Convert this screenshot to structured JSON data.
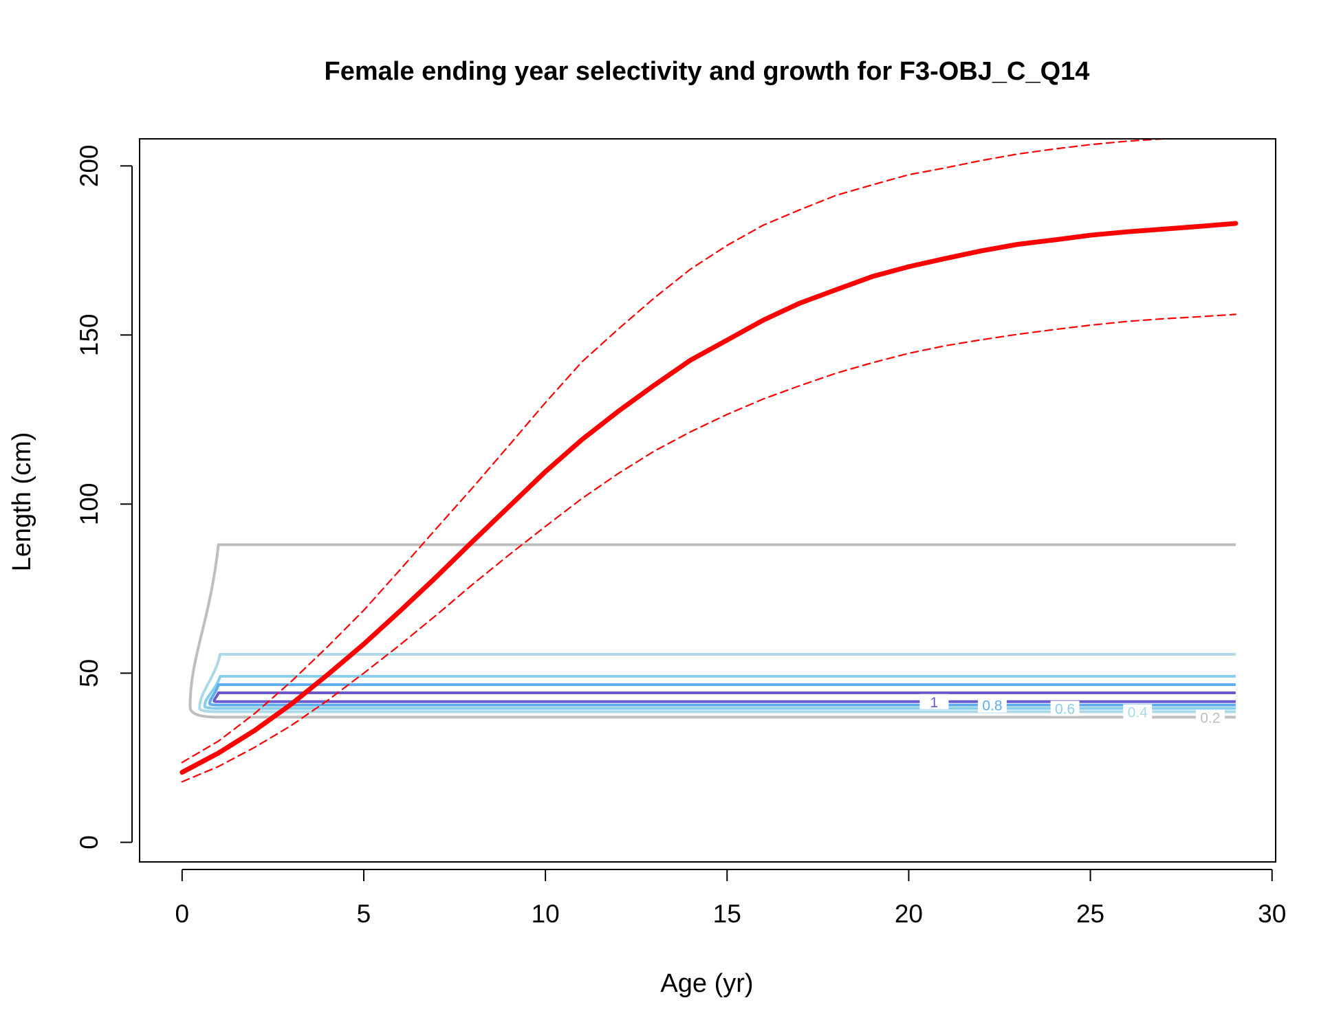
{
  "chart_data": {
    "type": "line",
    "title": "Female ending year selectivity and growth for F3-OBJ_C_Q14",
    "xlabel": "Age (yr)",
    "ylabel": "Length (cm)",
    "xlim": [
      -1.17,
      30.1
    ],
    "ylim": [
      -5.8,
      208
    ],
    "x_ticks": [
      0,
      5,
      10,
      15,
      20,
      25,
      30
    ],
    "x_tick_labels": [
      "0",
      "5",
      "10",
      "15",
      "20",
      "25",
      "30"
    ],
    "y_ticks": [
      0,
      50,
      100,
      150,
      200
    ],
    "y_tick_labels": [
      "0",
      "50",
      "100",
      "150",
      "200"
    ],
    "grid": false,
    "legend": "none",
    "series": [
      {
        "role": "mean-length-at-age",
        "color": "#ff0000",
        "style": "solid",
        "weight": "thick",
        "x": [
          0,
          1,
          2,
          3,
          4,
          5,
          6,
          7,
          8,
          9,
          10,
          11,
          12,
          13,
          14,
          15,
          16,
          17,
          18,
          19,
          20,
          21,
          22,
          23,
          24,
          25,
          26,
          27,
          28,
          29
        ],
        "values": [
          20.7,
          26.4,
          33.1,
          40.8,
          49.5,
          58.6,
          68.4,
          78.5,
          89.0,
          99.3,
          109.6,
          119.0,
          127.4,
          135.2,
          142.6,
          148.5,
          154.4,
          159.4,
          163.4,
          167.3,
          170.2,
          172.6,
          174.9,
          176.8,
          178.1,
          179.5,
          180.5,
          181.3,
          182.1,
          183.0
        ]
      },
      {
        "role": "upper-interval",
        "color": "#ff0000",
        "style": "dashed",
        "weight": "thin",
        "x": [
          0,
          1,
          2,
          3,
          4,
          5,
          6,
          7,
          8,
          9,
          10,
          11,
          12,
          13,
          14,
          15,
          16,
          17,
          18,
          19,
          20,
          21,
          22,
          23,
          24,
          25,
          26,
          27
        ],
        "values": [
          23.6,
          29.9,
          38.1,
          47.5,
          57.8,
          68.6,
          80.6,
          92.8,
          104.9,
          117.4,
          130.0,
          142.0,
          151.7,
          161.0,
          169.5,
          176.5,
          182.5,
          187.0,
          191.3,
          194.4,
          197.4,
          199.4,
          201.6,
          203.5,
          205.0,
          206.3,
          207.3,
          208.0
        ]
      },
      {
        "role": "lower-interval",
        "color": "#ff0000",
        "style": "dashed",
        "weight": "thin",
        "x": [
          0,
          1,
          2,
          3,
          4,
          5,
          6,
          7,
          8,
          9,
          10,
          11,
          12,
          13,
          14,
          15,
          16,
          17,
          18,
          19,
          20,
          21,
          22,
          23,
          24,
          25,
          26,
          27,
          28,
          29
        ],
        "values": [
          17.9,
          22.4,
          28.1,
          34.5,
          41.9,
          50.0,
          58.4,
          67.2,
          76.3,
          85.0,
          93.4,
          101.6,
          109.0,
          115.7,
          121.4,
          126.5,
          131.1,
          135.0,
          138.7,
          141.8,
          144.6,
          146.8,
          148.6,
          150.2,
          151.6,
          152.9,
          154.0,
          154.8,
          155.4,
          156.1
        ]
      }
    ],
    "contours": [
      {
        "level": 0.2,
        "label": "0.2",
        "color": "#bebebe",
        "y_low": 37.0,
        "y_high": 88.0,
        "x_start": 1.0,
        "x_tip": 0.22,
        "x_end": 29,
        "labeled_at_x": 28.3
      },
      {
        "level": 0.4,
        "label": "0.4",
        "color": "#add8e6",
        "y_low": 38.6,
        "y_high": 55.6,
        "x_start": 1.05,
        "x_tip": 0.48,
        "x_end": 29,
        "labeled_at_x": 26.3
      },
      {
        "level": 0.6,
        "label": "0.6",
        "color": "#87ceeb",
        "y_low": 39.6,
        "y_high": 49.1,
        "x_start": 1.05,
        "x_tip": 0.62,
        "x_end": 29,
        "labeled_at_x": 24.3
      },
      {
        "level": 0.8,
        "label": "0.8",
        "color": "#5cacee",
        "y_low": 40.6,
        "y_high": 46.6,
        "x_start": 1.0,
        "x_tip": 0.76,
        "x_end": 29,
        "labeled_at_x": 22.3
      },
      {
        "level": 1,
        "label": "1",
        "color": "#6a5acd",
        "y_low": 41.6,
        "y_high": 44.2,
        "x_start": 1.0,
        "x_tip": 0.88,
        "x_end": 29,
        "labeled_at_x": 20.7
      }
    ]
  }
}
